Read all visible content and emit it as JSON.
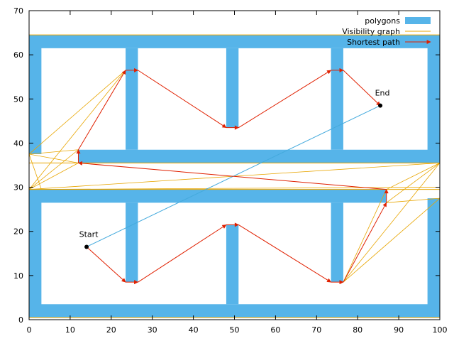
{
  "chart_data": {
    "type": "line",
    "title": "",
    "xlabel": "",
    "ylabel": "",
    "xlim": [
      0,
      100
    ],
    "ylim": [
      0,
      70
    ],
    "x_ticks": [
      0,
      10,
      20,
      30,
      40,
      50,
      60,
      70,
      80,
      90,
      100
    ],
    "y_ticks": [
      0,
      10,
      20,
      30,
      40,
      50,
      60,
      70
    ],
    "grid": false,
    "legend_position": "top-right",
    "colors": {
      "polygons": "#56b4e9",
      "visibility": "#e8a500",
      "path": "#e02000",
      "line": "#44aadd"
    },
    "legend": [
      {
        "key": "polygons",
        "label": "polygons"
      },
      {
        "key": "visibility",
        "label": "Visibility graph"
      },
      {
        "key": "path",
        "label": "Shortest path"
      }
    ],
    "polygons": [
      {
        "name": "left-wall-top",
        "x": [
          0,
          3,
          3,
          0
        ],
        "y": [
          64.5,
          64.5,
          37.5,
          37.5
        ]
      },
      {
        "name": "top-wall",
        "x": [
          0,
          100,
          100,
          0
        ],
        "y": [
          64.5,
          64.5,
          61.5,
          61.5
        ]
      },
      {
        "name": "right-wall-top",
        "x": [
          97,
          100,
          100,
          97
        ],
        "y": [
          64.5,
          64.5,
          35.5,
          35.5
        ]
      },
      {
        "name": "middle-upper-bar",
        "x": [
          12,
          100,
          100,
          12
        ],
        "y": [
          38.5,
          38.5,
          35.5,
          35.5
        ]
      },
      {
        "name": "pillar-top-1",
        "x": [
          23.5,
          26.5,
          26.5,
          23.5
        ],
        "y": [
          61.5,
          61.5,
          38.5,
          38.5
        ]
      },
      {
        "name": "pillar-top-2",
        "x": [
          48,
          51,
          51,
          48
        ],
        "y": [
          61.5,
          61.5,
          43.5,
          43.5
        ]
      },
      {
        "name": "pillar-top-3",
        "x": [
          73.5,
          76.5,
          76.5,
          73.5
        ],
        "y": [
          61.5,
          61.5,
          38.5,
          38.5
        ]
      },
      {
        "name": "middle-lower-bar",
        "x": [
          0,
          87,
          87,
          0
        ],
        "y": [
          29.5,
          29.5,
          26.5,
          26.5
        ]
      },
      {
        "name": "left-wall-bottom",
        "x": [
          0,
          3,
          3,
          0
        ],
        "y": [
          29.5,
          29.5,
          0.5,
          0.5
        ]
      },
      {
        "name": "bottom-wall",
        "x": [
          0,
          100,
          100,
          0
        ],
        "y": [
          3.5,
          3.5,
          0.5,
          0.5
        ]
      },
      {
        "name": "right-wall-bottom",
        "x": [
          97,
          100,
          100,
          97
        ],
        "y": [
          27.5,
          27.5,
          0.5,
          0.5
        ]
      },
      {
        "name": "pillar-bottom-1",
        "x": [
          23.5,
          26.5,
          26.5,
          23.5
        ],
        "y": [
          26.5,
          26.5,
          8.5,
          8.5
        ]
      },
      {
        "name": "pillar-bottom-2",
        "x": [
          48,
          51,
          51,
          48
        ],
        "y": [
          21.5,
          21.5,
          3.5,
          3.5
        ]
      },
      {
        "name": "pillar-bottom-3",
        "x": [
          73.5,
          76.5,
          76.5,
          73.5
        ],
        "y": [
          26.5,
          26.5,
          8.5,
          8.5
        ]
      }
    ],
    "boundary_outline": [
      {
        "x": [
          0,
          100,
          100,
          0,
          0
        ],
        "y": [
          64.5,
          64.5,
          35.5,
          35.5,
          64.5
        ]
      },
      {
        "x": [
          0,
          100,
          100,
          0,
          0
        ],
        "y": [
          29.5,
          29.5,
          0.5,
          0.5,
          29.5
        ]
      }
    ],
    "visibility_edges": [
      {
        "x": [
          0,
          23.5
        ],
        "y": [
          37.5,
          56.5
        ]
      },
      {
        "x": [
          0,
          23.5
        ],
        "y": [
          29.5,
          56.5
        ]
      },
      {
        "x": [
          0,
          12
        ],
        "y": [
          37.5,
          38.5
        ]
      },
      {
        "x": [
          0,
          12
        ],
        "y": [
          29.5,
          38.5
        ]
      },
      {
        "x": [
          0,
          12
        ],
        "y": [
          37.5,
          35.5
        ]
      },
      {
        "x": [
          0,
          12
        ],
        "y": [
          29.5,
          35.5
        ]
      },
      {
        "x": [
          0,
          3
        ],
        "y": [
          37.5,
          29.5
        ]
      },
      {
        "x": [
          0,
          100
        ],
        "y": [
          29.5,
          35.5
        ]
      },
      {
        "x": [
          0,
          100
        ],
        "y": [
          29.5,
          30.0
        ]
      },
      {
        "x": [
          12,
          100
        ],
        "y": [
          35.5,
          35.5
        ]
      },
      {
        "x": [
          87,
          100
        ],
        "y": [
          29.5,
          35.5
        ]
      },
      {
        "x": [
          87,
          100
        ],
        "y": [
          26.5,
          35.5
        ]
      },
      {
        "x": [
          87,
          100
        ],
        "y": [
          26.5,
          27.5
        ]
      },
      {
        "x": [
          76.5,
          100
        ],
        "y": [
          8.5,
          35.5
        ]
      },
      {
        "x": [
          76.5,
          100
        ],
        "y": [
          8.5,
          27.5
        ]
      },
      {
        "x": [
          76.5,
          87
        ],
        "y": [
          8.5,
          29.5
        ]
      }
    ],
    "line_of_sight": {
      "x": [
        14,
        85.5
      ],
      "y": [
        16.5,
        48.5
      ]
    },
    "path_segments": [
      {
        "x": [
          14,
          23.5
        ],
        "y": [
          16.5,
          8.5
        ]
      },
      {
        "x": [
          23.5,
          26.5
        ],
        "y": [
          8.5,
          8.5
        ]
      },
      {
        "x": [
          26.5,
          48
        ],
        "y": [
          8.5,
          21.5
        ]
      },
      {
        "x": [
          48,
          51
        ],
        "y": [
          21.5,
          21.5
        ]
      },
      {
        "x": [
          51,
          73.5
        ],
        "y": [
          21.5,
          8.5
        ]
      },
      {
        "x": [
          73.5,
          76.5
        ],
        "y": [
          8.5,
          8.5
        ]
      },
      {
        "x": [
          76.5,
          87
        ],
        "y": [
          8.5,
          26.5
        ]
      },
      {
        "x": [
          87,
          87
        ],
        "y": [
          26.5,
          29.5
        ]
      },
      {
        "x": [
          87,
          12
        ],
        "y": [
          29.5,
          35.5
        ]
      },
      {
        "x": [
          12,
          12
        ],
        "y": [
          35.5,
          38.5
        ]
      },
      {
        "x": [
          12,
          23.5
        ],
        "y": [
          38.5,
          56.5
        ]
      },
      {
        "x": [
          23.5,
          26.5
        ],
        "y": [
          56.5,
          56.5
        ]
      },
      {
        "x": [
          26.5,
          48
        ],
        "y": [
          56.5,
          43.5
        ]
      },
      {
        "x": [
          48,
          51
        ],
        "y": [
          43.5,
          43.5
        ]
      },
      {
        "x": [
          51,
          73.5
        ],
        "y": [
          43.5,
          56.5
        ]
      },
      {
        "x": [
          73.5,
          76.5
        ],
        "y": [
          56.5,
          56.5
        ]
      },
      {
        "x": [
          76.5,
          85.5
        ],
        "y": [
          56.5,
          48.5
        ]
      }
    ],
    "points": [
      {
        "label": "Start",
        "x": 14,
        "y": 16.5
      },
      {
        "label": "End",
        "x": 85.5,
        "y": 48.5
      }
    ]
  }
}
